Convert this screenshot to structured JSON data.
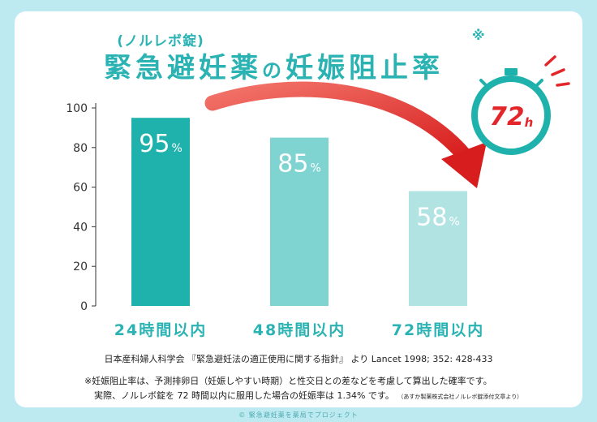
{
  "header": {
    "subtitle": "(ノルレボ錠)",
    "title_part1": "緊急避妊薬",
    "title_no": "の",
    "title_part2": "妊娠阻止率",
    "mark": "※"
  },
  "badge": {
    "text": "72",
    "unit": "h",
    "icon": "stopwatch-icon"
  },
  "chart_data": {
    "type": "bar",
    "categories": [
      "24時間以内",
      "48時間以内",
      "72時間以内"
    ],
    "values": [
      95,
      85,
      58
    ],
    "value_unit": "%",
    "ylim": [
      0,
      100
    ],
    "yticks": [
      0,
      20,
      40,
      60,
      80,
      100
    ],
    "grid": false,
    "colors": [
      "#1fb1ab",
      "#7fd4d2",
      "#b2e3e3"
    ],
    "annotation": "red curved arrow from the 24h bar to the 72h bar"
  },
  "source": "日本産科婦人科学会 『緊急避妊法の適正使用に関する指針』 より Lancet 1998; 352: 428-433",
  "notes": {
    "line1": "※妊娠阻止率は、予測排卵日（妊娠しやすい時期）と性交日との差などを考慮して算出した確率です。",
    "line2": "実際、ノルレボ錠を 72 時間以内に服用した場合の妊娠率は 1.34% です。",
    "line2_small": "（あすか製薬株式会社ノルレボ錠添付文章より）"
  },
  "footer": "© 緊急避妊薬を薬局でプロジェクト"
}
